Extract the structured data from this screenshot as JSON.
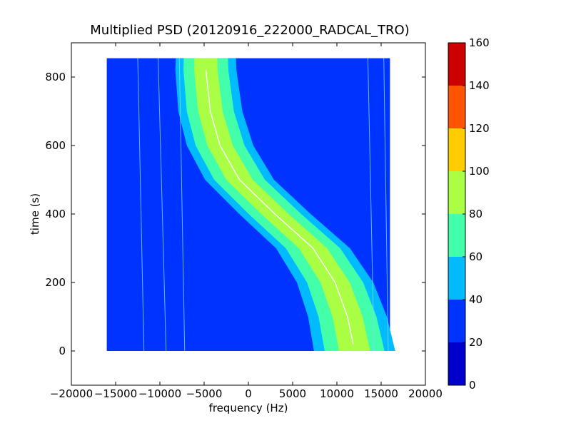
{
  "chart_data": {
    "type": "heatmap",
    "title": "Multiplied PSD (20120916_222000_RADCAL_TRO)",
    "xlabel": "frequency (Hz)",
    "ylabel": "time (s)",
    "xlim": [
      -20000,
      20000
    ],
    "ylim": [
      -100,
      900
    ],
    "x_ticks": [
      -20000,
      -15000,
      -10000,
      -5000,
      0,
      5000,
      10000,
      15000,
      20000
    ],
    "x_tick_labels": [
      "−20000",
      "−15000",
      "−10000",
      "−5000",
      "0",
      "5000",
      "10000",
      "15000",
      "20000"
    ],
    "y_ticks": [
      0,
      200,
      400,
      600,
      800
    ],
    "y_tick_labels": [
      "0",
      "200",
      "400",
      "600",
      "800"
    ],
    "data_extent": {
      "x": [
        -16000,
        16000
      ],
      "y": [
        0,
        855
      ]
    },
    "background_level": 20,
    "grid": false,
    "colorbar": {
      "levels": [
        0,
        20,
        40,
        60,
        80,
        100,
        120,
        140,
        160
      ],
      "tick_labels": [
        "0",
        "20",
        "40",
        "60",
        "80",
        "100",
        "120",
        "140",
        "160"
      ],
      "colors": [
        "#0000cc",
        "#0033ff",
        "#00bbff",
        "#44ffaa",
        "#aaff44",
        "#ffcc00",
        "#ff5500",
        "#cc0000"
      ]
    },
    "signal_track": {
      "description_levels": [
        40,
        60,
        80
      ],
      "points": [
        {
          "time": 0,
          "frequency": 12000
        },
        {
          "time": 100,
          "frequency": 11200
        },
        {
          "time": 200,
          "frequency": 9800
        },
        {
          "time": 300,
          "frequency": 7300
        },
        {
          "time": 400,
          "frequency": 3000
        },
        {
          "time": 500,
          "frequency": -1000
        },
        {
          "time": 600,
          "frequency": -3200
        },
        {
          "time": 700,
          "frequency": -4300
        },
        {
          "time": 820,
          "frequency": -4800
        }
      ]
    },
    "faint_lines": [
      {
        "frequency_start": -12500,
        "frequency_end": -11800
      },
      {
        "frequency_start": -10200,
        "frequency_end": -9300
      },
      {
        "frequency_start": -7800,
        "frequency_end": -7200
      },
      {
        "frequency_start": 13500,
        "frequency_end": 14200
      },
      {
        "frequency_start": 15300,
        "frequency_end": 15800
      }
    ]
  }
}
